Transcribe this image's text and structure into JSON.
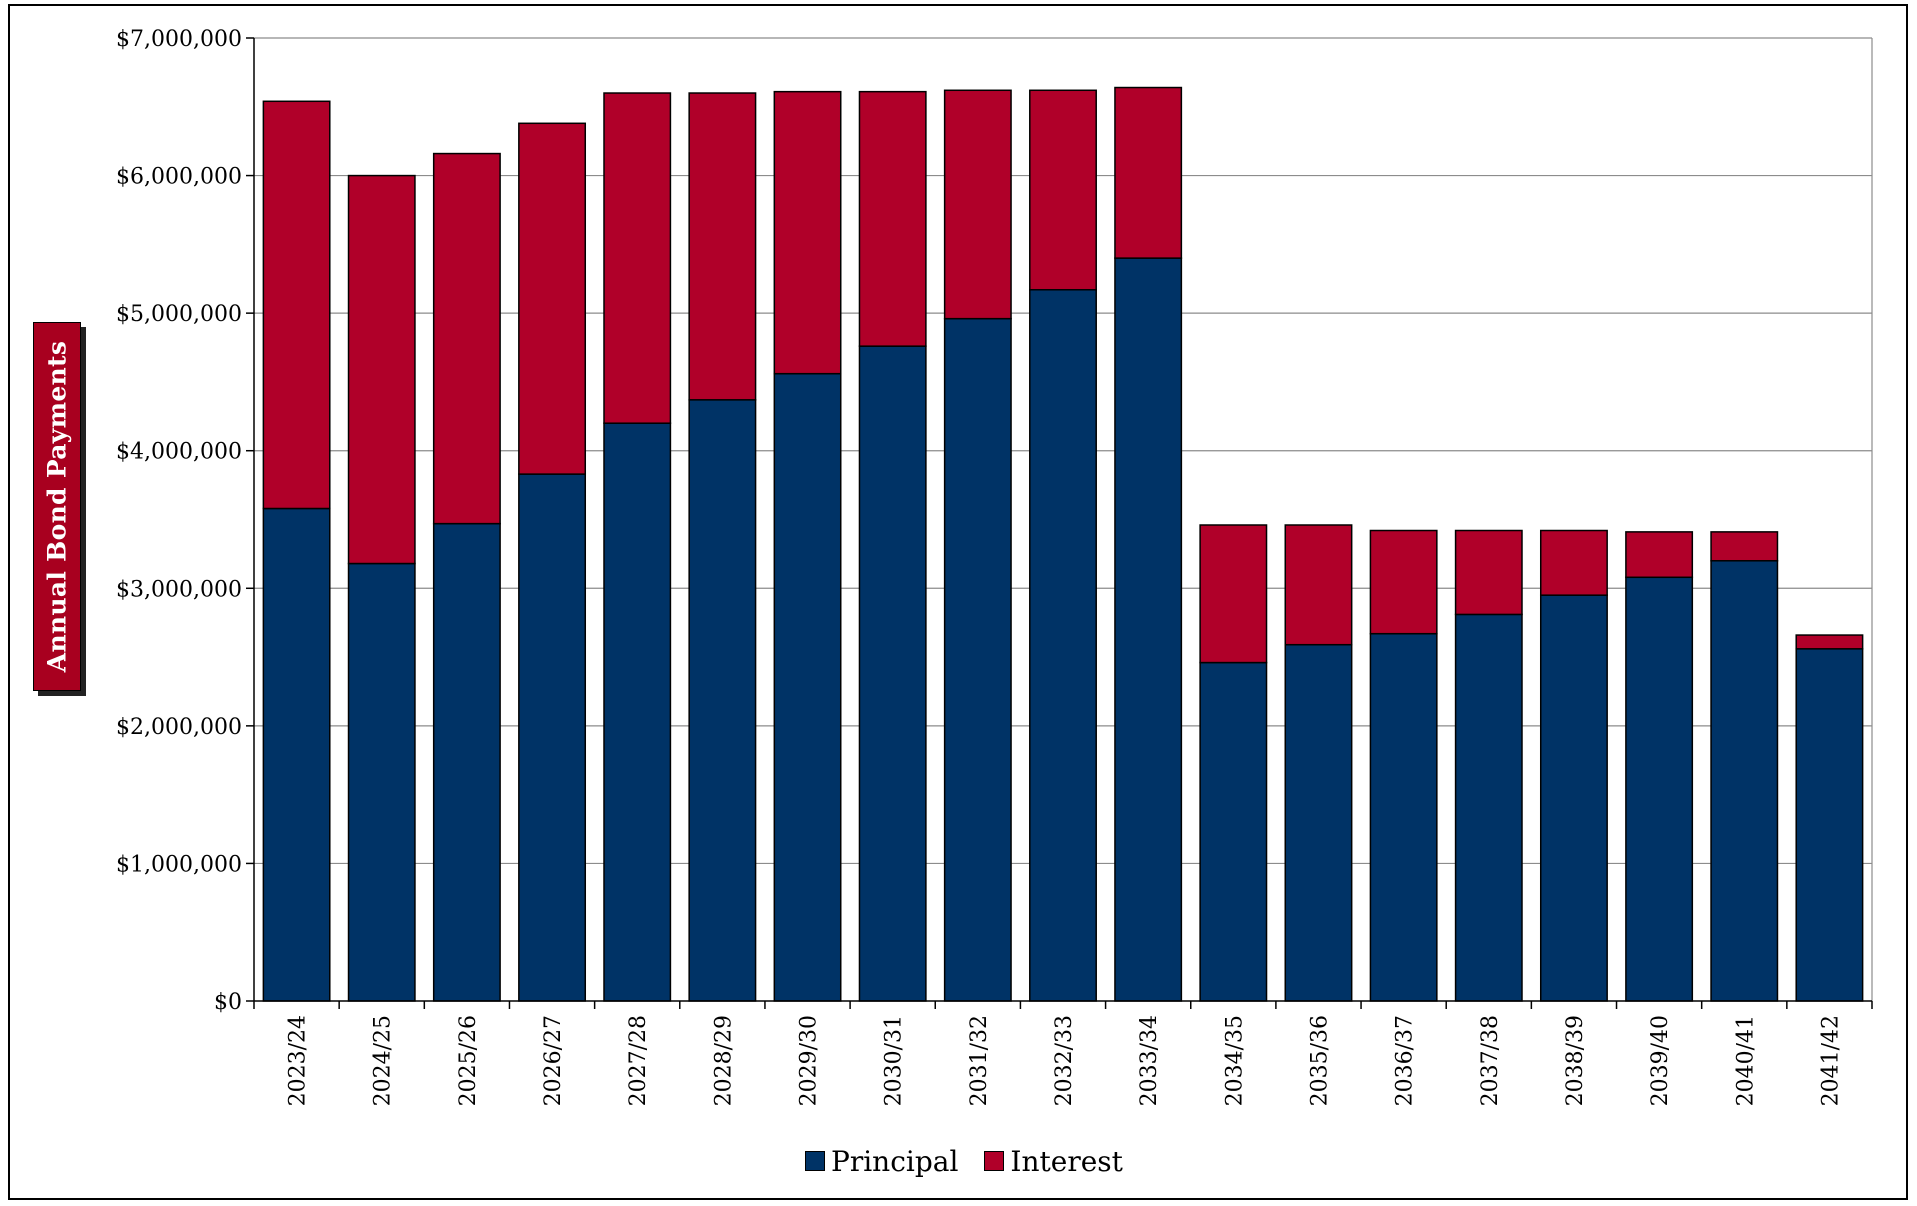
{
  "chart_data": {
    "type": "bar",
    "stacked": true,
    "ylabel": "Annual Bond Payments",
    "ylim": [
      0,
      7000000
    ],
    "yticks": [
      0,
      1000000,
      2000000,
      3000000,
      4000000,
      5000000,
      6000000,
      7000000
    ],
    "ytick_labels": [
      "$0",
      "$1,000,000",
      "$2,000,000",
      "$3,000,000",
      "$4,000,000",
      "$5,000,000",
      "$6,000,000",
      "$7,000,000"
    ],
    "grid": true,
    "legend_position": "bottom-center",
    "categories": [
      "2023/24",
      "2024/25",
      "2025/26",
      "2026/27",
      "2027/28",
      "2028/29",
      "2029/30",
      "2030/31",
      "2031/32",
      "2032/33",
      "2033/34",
      "2034/35",
      "2035/36",
      "2036/37",
      "2037/38",
      "2038/39",
      "2039/40",
      "2040/41",
      "2041/42"
    ],
    "series": [
      {
        "name": "Principal",
        "color": "#003366",
        "values": [
          3580000,
          3180000,
          3470000,
          3830000,
          4200000,
          4370000,
          4560000,
          4760000,
          4960000,
          5170000,
          5400000,
          2460000,
          2590000,
          2670000,
          2810000,
          2950000,
          3080000,
          3200000,
          2560000
        ]
      },
      {
        "name": "Interest",
        "color": "#b00029",
        "values": [
          2960000,
          2820000,
          2690000,
          2550000,
          2400000,
          2230000,
          2050000,
          1850000,
          1660000,
          1450000,
          1240000,
          1000000,
          870000,
          750000,
          610000,
          470000,
          330000,
          210000,
          100000
        ]
      }
    ]
  }
}
